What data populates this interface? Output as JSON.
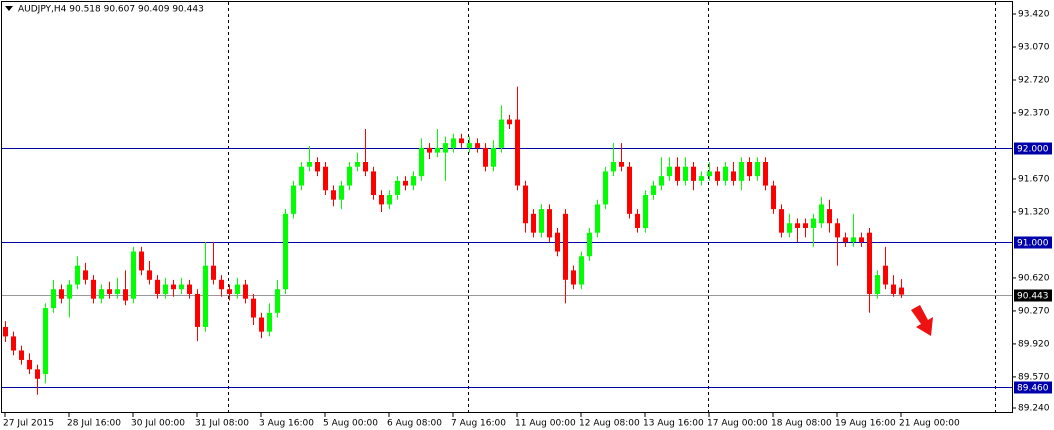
{
  "chart_data": {
    "type": "candlestick",
    "title": "AUDJPY,H4  90.518 90.607 90.409 90.443",
    "categories": [
      "27 Jul 2015",
      null,
      null,
      null,
      null,
      null,
      null,
      null,
      "28 Jul 16:00",
      null,
      null,
      null,
      null,
      null,
      null,
      null,
      "30 Jul 00:00",
      null,
      null,
      null,
      null,
      null,
      null,
      null,
      "31 Jul 08:00",
      null,
      null,
      null,
      null,
      null,
      null,
      null,
      "3 Aug 16:00",
      null,
      null,
      null,
      null,
      null,
      null,
      null,
      "5 Aug 00:00",
      null,
      null,
      null,
      null,
      null,
      null,
      null,
      "6 Aug 08:00",
      null,
      null,
      null,
      null,
      null,
      null,
      null,
      "7 Aug 16:00",
      null,
      null,
      null,
      null,
      null,
      null,
      null,
      "11 Aug 00:00",
      null,
      null,
      null,
      null,
      null,
      null,
      null,
      "12 Aug 08:00",
      null,
      null,
      null,
      null,
      null,
      null,
      null,
      "13 Aug 16:00",
      null,
      null,
      null,
      null,
      null,
      null,
      null,
      "17 Aug 00:00",
      null,
      null,
      null,
      null,
      null,
      null,
      null,
      "18 Aug 08:00",
      null,
      null,
      null,
      null,
      null,
      null,
      null,
      "19 Aug 16:00",
      null,
      null,
      null,
      null,
      null,
      null,
      null,
      "21 Aug 00:00"
    ],
    "open": [
      90.1,
      90.0,
      89.85,
      89.75,
      89.65,
      89.6,
      90.3,
      90.5,
      90.4,
      90.55,
      90.7,
      90.6,
      90.4,
      90.5,
      90.45,
      90.5,
      90.4,
      90.9,
      90.7,
      90.6,
      90.45,
      90.55,
      90.5,
      90.55,
      90.45,
      90.1,
      90.75,
      90.6,
      90.5,
      90.45,
      90.55,
      90.4,
      90.2,
      90.05,
      90.25,
      90.5,
      91.3,
      91.6,
      91.8,
      91.85,
      91.8,
      91.55,
      91.45,
      91.6,
      91.8,
      91.85,
      91.75,
      91.5,
      91.4,
      91.5,
      91.65,
      91.6,
      91.7,
      92.0,
      91.95,
      91.95,
      92.0,
      92.1,
      92.0,
      92.05,
      92.0,
      91.8,
      92.0,
      92.3,
      92.3,
      91.6,
      91.3,
      91.1,
      91.35,
      91.1,
      91.3,
      90.7,
      90.55,
      90.85,
      91.1,
      91.4,
      91.75,
      91.85,
      91.8,
      91.3,
      91.15,
      91.5,
      91.6,
      91.7,
      91.8,
      91.65,
      91.8,
      91.65,
      91.7,
      91.75,
      91.65,
      91.75,
      91.65,
      91.85,
      91.7,
      91.85,
      91.6,
      91.35,
      91.1,
      91.2,
      91.2,
      91.15,
      91.2,
      91.35,
      91.2,
      91.05,
      91.0,
      91.05,
      91.1,
      90.45,
      90.75,
      90.55,
      90.518
    ],
    "high": [
      90.16,
      90.05,
      89.9,
      89.82,
      89.7,
      90.35,
      90.6,
      90.55,
      90.6,
      90.85,
      90.78,
      90.65,
      90.55,
      90.58,
      90.62,
      90.7,
      90.95,
      90.95,
      90.8,
      90.65,
      90.62,
      90.6,
      90.62,
      90.6,
      90.5,
      91.0,
      91.0,
      90.65,
      90.55,
      90.62,
      90.6,
      90.45,
      90.25,
      90.35,
      90.6,
      91.35,
      91.65,
      91.85,
      92.02,
      91.9,
      91.85,
      91.6,
      91.65,
      91.85,
      91.95,
      92.2,
      91.8,
      91.55,
      91.55,
      91.7,
      91.7,
      91.75,
      92.1,
      92.05,
      92.2,
      92.12,
      92.15,
      92.15,
      92.12,
      92.1,
      92.05,
      92.08,
      92.45,
      92.35,
      92.65,
      91.65,
      91.35,
      91.4,
      91.4,
      91.15,
      91.35,
      90.75,
      90.9,
      91.15,
      91.45,
      91.8,
      92.05,
      92.05,
      91.85,
      91.35,
      91.55,
      91.65,
      91.9,
      91.9,
      91.9,
      91.9,
      91.85,
      91.75,
      91.85,
      91.8,
      91.85,
      91.85,
      91.9,
      91.9,
      91.9,
      91.9,
      91.65,
      91.4,
      91.3,
      91.25,
      91.25,
      91.3,
      91.48,
      91.45,
      91.25,
      91.1,
      91.3,
      91.1,
      91.15,
      90.7,
      90.95,
      90.65,
      90.607
    ],
    "low": [
      89.94,
      89.8,
      89.7,
      89.6,
      89.38,
      89.5,
      90.25,
      90.35,
      90.2,
      90.5,
      90.55,
      90.35,
      90.35,
      90.4,
      90.4,
      90.33,
      90.35,
      90.65,
      90.55,
      90.4,
      90.4,
      90.42,
      90.45,
      90.4,
      89.95,
      90.05,
      90.55,
      90.42,
      90.38,
      90.4,
      90.35,
      90.12,
      89.98,
      90.0,
      90.2,
      90.45,
      91.25,
      91.55,
      91.75,
      91.7,
      91.5,
      91.38,
      91.35,
      91.55,
      91.75,
      91.7,
      91.45,
      91.32,
      91.35,
      91.45,
      91.55,
      91.55,
      91.65,
      91.88,
      91.9,
      91.65,
      91.95,
      92.0,
      91.95,
      91.95,
      91.75,
      91.75,
      91.95,
      92.2,
      91.55,
      91.1,
      91.05,
      91.05,
      91.0,
      90.85,
      90.35,
      90.5,
      90.5,
      90.8,
      91.05,
      91.35,
      91.7,
      91.75,
      91.25,
      91.1,
      91.1,
      91.45,
      91.55,
      91.65,
      91.6,
      91.6,
      91.55,
      91.6,
      91.65,
      91.6,
      91.6,
      91.6,
      91.55,
      91.65,
      91.65,
      91.55,
      91.3,
      91.05,
      91.05,
      91.0,
      91.05,
      90.95,
      91.15,
      91.1,
      90.75,
      90.95,
      90.95,
      90.95,
      90.25,
      90.4,
      90.5,
      90.42,
      90.409
    ],
    "close": [
      90.0,
      89.85,
      89.75,
      89.65,
      89.55,
      90.3,
      90.5,
      90.4,
      90.55,
      90.75,
      90.6,
      90.4,
      90.5,
      90.45,
      90.5,
      90.38,
      90.9,
      90.7,
      90.6,
      90.45,
      90.55,
      90.5,
      90.55,
      90.45,
      90.1,
      90.75,
      90.6,
      90.5,
      90.45,
      90.55,
      90.4,
      90.2,
      90.05,
      90.25,
      90.5,
      91.3,
      91.6,
      91.8,
      91.85,
      91.75,
      91.55,
      91.45,
      91.6,
      91.8,
      91.85,
      91.75,
      91.5,
      91.4,
      91.5,
      91.65,
      91.6,
      91.7,
      92.0,
      91.95,
      92.0,
      92.05,
      92.1,
      92.05,
      92.05,
      92.0,
      91.8,
      92.0,
      92.3,
      92.25,
      91.6,
      91.2,
      91.1,
      91.35,
      91.05,
      90.9,
      90.6,
      90.55,
      90.85,
      91.1,
      91.4,
      91.75,
      91.85,
      91.8,
      91.3,
      91.15,
      91.5,
      91.6,
      91.7,
      91.8,
      91.65,
      91.8,
      91.65,
      91.7,
      91.75,
      91.65,
      91.8,
      91.65,
      91.85,
      91.7,
      91.85,
      91.6,
      91.35,
      91.1,
      91.2,
      91.15,
      91.15,
      91.25,
      91.4,
      91.2,
      91.05,
      91.0,
      91.05,
      91.0,
      90.45,
      90.65,
      90.55,
      90.45,
      90.443
    ],
    "up_color": "#00ff00",
    "down_color": "#ff0000",
    "ylim": [
      89.187,
      93.558
    ],
    "yticks": [
      {
        "value": 93.42,
        "label": "93.420"
      },
      {
        "value": 93.07,
        "label": "93.070"
      },
      {
        "value": 92.72,
        "label": "92.720"
      },
      {
        "value": 92.37,
        "label": "92.370"
      },
      {
        "value": 91.67,
        "label": "91.670"
      },
      {
        "value": 91.32,
        "label": "91.320"
      },
      {
        "value": 90.62,
        "label": "90.620"
      },
      {
        "value": 90.27,
        "label": "90.270"
      },
      {
        "value": 89.92,
        "label": "89.920"
      },
      {
        "value": 89.57,
        "label": "89.570"
      },
      {
        "value": 89.24,
        "label": "89.240"
      }
    ],
    "levels": [
      {
        "value": 92,
        "label": "92.000",
        "color": "#0000aa"
      },
      {
        "value": 91,
        "label": "91.000",
        "color": "#0000aa"
      },
      {
        "value": 89.46,
        "label": "89.460",
        "color": "#0000aa"
      },
      {
        "value": 90.443,
        "label": "90.443",
        "color": "#000000"
      }
    ]
  }
}
